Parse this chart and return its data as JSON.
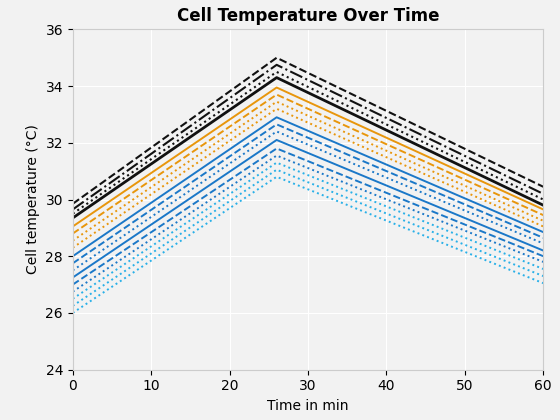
{
  "title": "Cell Temperature Over Time",
  "xlabel": "Time in min",
  "ylabel": "Cell temperature (°C)",
  "xlim": [
    0,
    60
  ],
  "ylim": [
    24,
    36
  ],
  "xticks": [
    0,
    10,
    20,
    30,
    40,
    50,
    60
  ],
  "yticks": [
    24,
    26,
    28,
    30,
    32,
    34,
    36
  ],
  "peak_x": 26,
  "lines": [
    {
      "start": 29.85,
      "peak": 35.0,
      "end": 30.45,
      "color": "#111111",
      "style": "--",
      "lw": 1.5
    },
    {
      "start": 29.65,
      "peak": 34.75,
      "end": 30.2,
      "color": "#111111",
      "style": "-.",
      "lw": 1.5
    },
    {
      "start": 29.5,
      "peak": 34.5,
      "end": 30.0,
      "color": "#111111",
      "style": ":",
      "lw": 1.5
    },
    {
      "start": 29.35,
      "peak": 34.3,
      "end": 29.8,
      "color": "#111111",
      "style": "-",
      "lw": 2.0
    },
    {
      "start": 29.05,
      "peak": 33.95,
      "end": 29.65,
      "color": "#E8960C",
      "style": "-",
      "lw": 1.4
    },
    {
      "start": 28.8,
      "peak": 33.7,
      "end": 29.45,
      "color": "#E8960C",
      "style": "--",
      "lw": 1.4
    },
    {
      "start": 28.55,
      "peak": 33.45,
      "end": 29.25,
      "color": "#E8960C",
      "style": ":",
      "lw": 1.4
    },
    {
      "start": 28.3,
      "peak": 33.2,
      "end": 29.05,
      "color": "#E8960C",
      "style": ":",
      "lw": 1.4
    },
    {
      "start": 28.0,
      "peak": 32.9,
      "end": 28.85,
      "color": "#1B78C8",
      "style": "-",
      "lw": 1.4
    },
    {
      "start": 27.75,
      "peak": 32.65,
      "end": 28.65,
      "color": "#1B78C8",
      "style": "--",
      "lw": 1.4
    },
    {
      "start": 27.5,
      "peak": 32.4,
      "end": 28.45,
      "color": "#1B78C8",
      "style": ":",
      "lw": 1.4
    },
    {
      "start": 27.25,
      "peak": 32.1,
      "end": 28.2,
      "color": "#1B78C8",
      "style": "-",
      "lw": 1.4
    },
    {
      "start": 27.0,
      "peak": 31.8,
      "end": 28.0,
      "color": "#1B78C8",
      "style": "--",
      "lw": 1.4
    },
    {
      "start": 26.75,
      "peak": 31.55,
      "end": 27.8,
      "color": "#1B78C8",
      "style": ":",
      "lw": 1.4
    },
    {
      "start": 26.5,
      "peak": 31.3,
      "end": 27.55,
      "color": "#29B0E8",
      "style": ":",
      "lw": 1.4
    },
    {
      "start": 26.25,
      "peak": 31.05,
      "end": 27.3,
      "color": "#29B0E8",
      "style": ":",
      "lw": 1.4
    },
    {
      "start": 26.0,
      "peak": 30.8,
      "end": 27.05,
      "color": "#29B0E8",
      "style": ":",
      "lw": 1.4
    }
  ],
  "background_color": "#f2f2f2",
  "grid_color": "#ffffff",
  "spine_color": "#cccccc",
  "title_fontsize": 12,
  "label_fontsize": 10,
  "tick_fontsize": 10
}
